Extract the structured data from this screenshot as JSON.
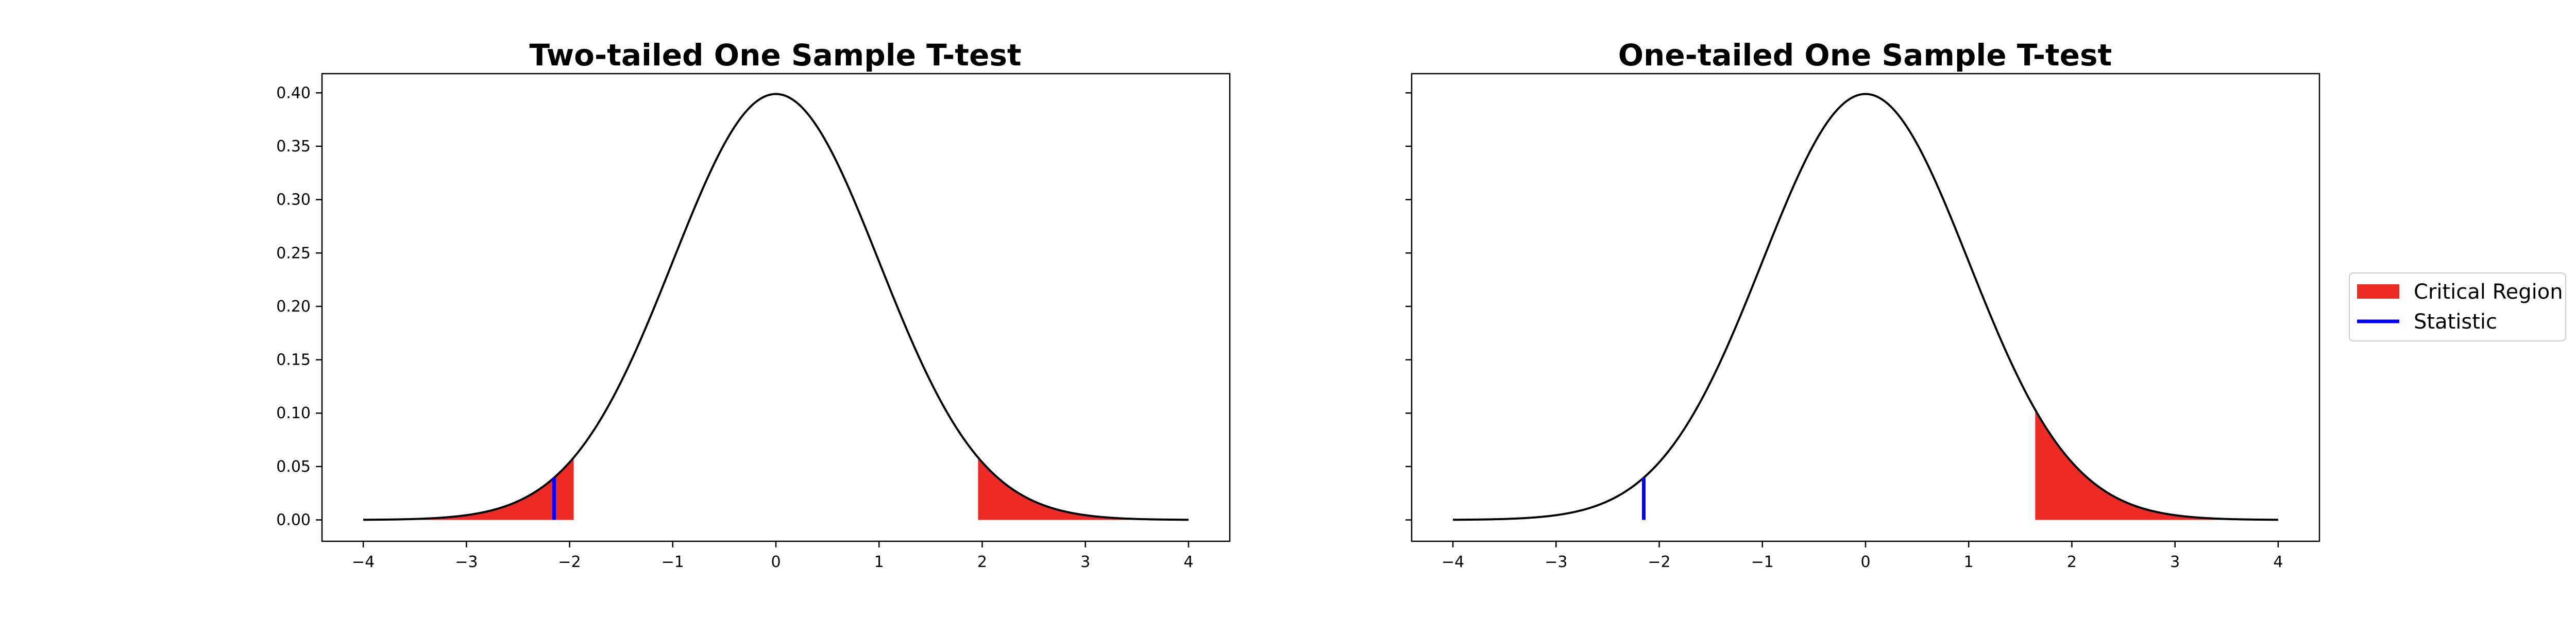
{
  "figure": {
    "legend": {
      "placement": "right",
      "items": [
        {
          "label": "Critical Region",
          "kind": "patch",
          "color": "#ee2a24"
        },
        {
          "label": "Statistic",
          "kind": "line",
          "color": "#0000ff"
        }
      ]
    }
  },
  "chart_data": [
    {
      "type": "area",
      "title": "Two-tailed One Sample T-test",
      "xlabel": "",
      "ylabel": "",
      "xlim": [
        -4.4,
        4.4
      ],
      "ylim": [
        -0.02,
        0.418
      ],
      "grid": false,
      "x_ticks": [
        -4,
        -3,
        -2,
        -1,
        0,
        1,
        2,
        3,
        4
      ],
      "x_tick_labels": [
        "−4",
        "−3",
        "−2",
        "−1",
        "0",
        "1",
        "2",
        "3",
        "4"
      ],
      "y_ticks": [
        0.0,
        0.05,
        0.1,
        0.15,
        0.2,
        0.25,
        0.3,
        0.35,
        0.4
      ],
      "y_tick_labels": [
        "0.00",
        "0.05",
        "0.10",
        "0.15",
        "0.20",
        "0.25",
        "0.30",
        "0.35",
        "0.40"
      ],
      "show_y_tick_labels": true,
      "curve": {
        "distribution": "standard normal density",
        "x_range": [
          -4,
          4
        ],
        "color": "#000000"
      },
      "critical_regions": [
        [
          -4,
          -1.96
        ],
        [
          1.96,
          4
        ]
      ],
      "statistic": -2.15
    },
    {
      "type": "area",
      "title": "One-tailed One Sample T-test",
      "xlabel": "",
      "ylabel": "",
      "xlim": [
        -4.4,
        4.4
      ],
      "ylim": [
        -0.02,
        0.418
      ],
      "grid": false,
      "x_ticks": [
        -4,
        -3,
        -2,
        -1,
        0,
        1,
        2,
        3,
        4
      ],
      "x_tick_labels": [
        "−4",
        "−3",
        "−2",
        "−1",
        "0",
        "1",
        "2",
        "3",
        "4"
      ],
      "y_ticks": [
        0.0,
        0.05,
        0.1,
        0.15,
        0.2,
        0.25,
        0.3,
        0.35,
        0.4
      ],
      "y_tick_labels": [
        "",
        "",
        "",
        "",
        "",
        "",
        "",
        "",
        ""
      ],
      "show_y_tick_labels": false,
      "curve": {
        "distribution": "standard normal density",
        "x_range": [
          -4,
          4
        ],
        "color": "#000000"
      },
      "critical_regions": [
        [
          1.645,
          4
        ]
      ],
      "statistic": -2.15
    }
  ]
}
